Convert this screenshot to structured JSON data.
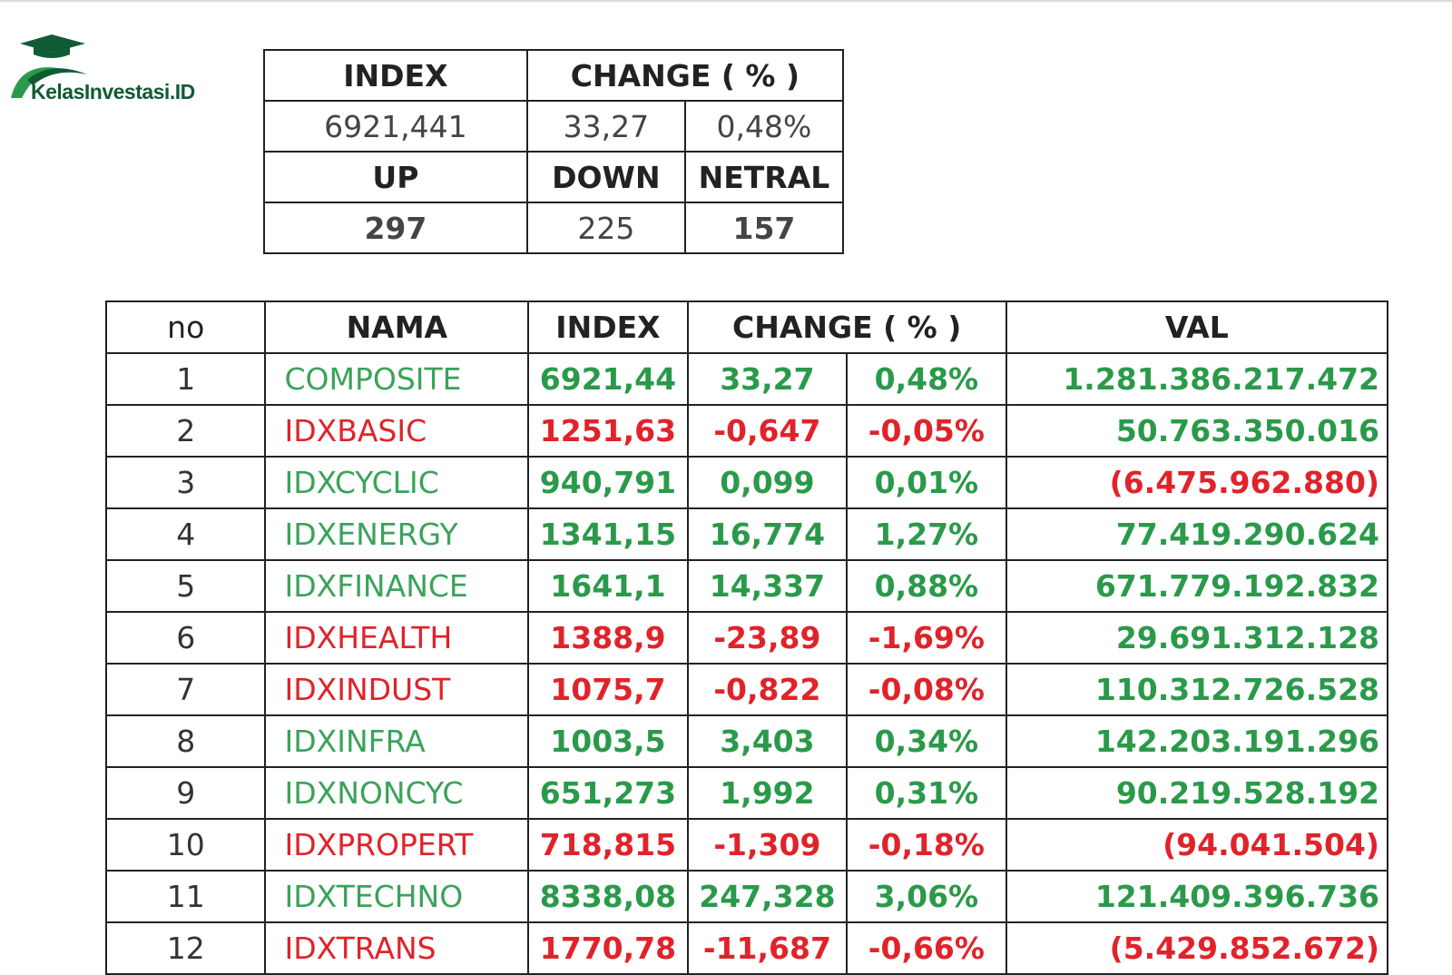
{
  "brand": {
    "name": "KelasInvestasi.ID"
  },
  "colors": {
    "up": "#2a9a4a",
    "down": "#e0232a",
    "brand": "#0f5b34"
  },
  "summary": {
    "index_header": "INDEX",
    "change_header": "CHANGE ( % )",
    "index_value": "6921,441",
    "change_value": "33,27",
    "change_pct": "0,48%",
    "up_header": "UP",
    "down_header": "DOWN",
    "netral_header": "NETRAL",
    "up_value": "297",
    "down_value": "225",
    "netral_value": "157"
  },
  "main": {
    "headers": {
      "no": "no",
      "nama": "NAMA",
      "index": "INDEX",
      "change": "CHANGE ( % )",
      "val": "VAL"
    },
    "rows": [
      {
        "no": "1",
        "nama": "COMPOSITE",
        "index": "6921,44",
        "change": "33,27",
        "pct": "0,48%",
        "val": "1.281.386.217.472",
        "trend": "up",
        "val_trend": "up"
      },
      {
        "no": "2",
        "nama": "IDXBASIC",
        "index": "1251,63",
        "change": "-0,647",
        "pct": "-0,05%",
        "val": "50.763.350.016",
        "trend": "down",
        "val_trend": "up"
      },
      {
        "no": "3",
        "nama": "IDXCYCLIC",
        "index": "940,791",
        "change": "0,099",
        "pct": "0,01%",
        "val": "(6.475.962.880)",
        "trend": "up",
        "val_trend": "down"
      },
      {
        "no": "4",
        "nama": "IDXENERGY",
        "index": "1341,15",
        "change": "16,774",
        "pct": "1,27%",
        "val": "77.419.290.624",
        "trend": "up",
        "val_trend": "up"
      },
      {
        "no": "5",
        "nama": "IDXFINANCE",
        "index": "1641,1",
        "change": "14,337",
        "pct": "0,88%",
        "val": "671.779.192.832",
        "trend": "up",
        "val_trend": "up"
      },
      {
        "no": "6",
        "nama": "IDXHEALTH",
        "index": "1388,9",
        "change": "-23,89",
        "pct": "-1,69%",
        "val": "29.691.312.128",
        "trend": "down",
        "val_trend": "up"
      },
      {
        "no": "7",
        "nama": "IDXINDUST",
        "index": "1075,7",
        "change": "-0,822",
        "pct": "-0,08%",
        "val": "110.312.726.528",
        "trend": "down",
        "val_trend": "up"
      },
      {
        "no": "8",
        "nama": "IDXINFRA",
        "index": "1003,5",
        "change": "3,403",
        "pct": "0,34%",
        "val": "142.203.191.296",
        "trend": "up",
        "val_trend": "up"
      },
      {
        "no": "9",
        "nama": "IDXNONCYC",
        "index": "651,273",
        "change": "1,992",
        "pct": "0,31%",
        "val": "90.219.528.192",
        "trend": "up",
        "val_trend": "up"
      },
      {
        "no": "10",
        "nama": "IDXPROPERT",
        "index": "718,815",
        "change": "-1,309",
        "pct": "-0,18%",
        "val": "(94.041.504)",
        "trend": "down",
        "val_trend": "down"
      },
      {
        "no": "11",
        "nama": "IDXTECHNO",
        "index": "8338,08",
        "change": "247,328",
        "pct": "3,06%",
        "val": "121.409.396.736",
        "trend": "up",
        "val_trend": "up"
      },
      {
        "no": "12",
        "nama": "IDXTRANS",
        "index": "1770,78",
        "change": "-11,687",
        "pct": "-0,66%",
        "val": "(5.429.852.672)",
        "trend": "down",
        "val_trend": "down"
      }
    ]
  }
}
